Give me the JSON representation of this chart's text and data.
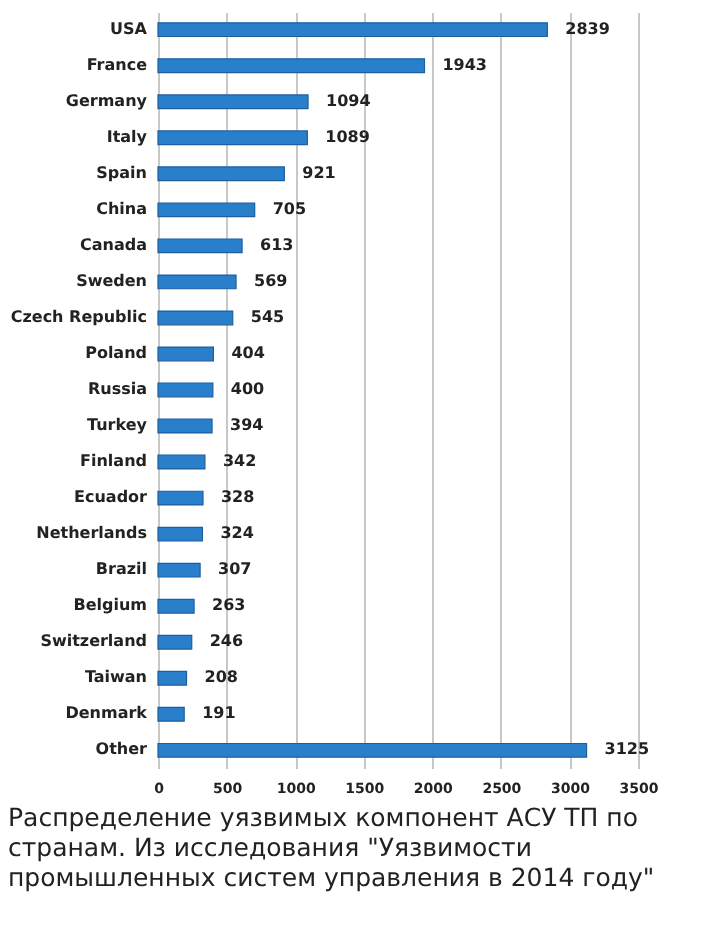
{
  "chart_data": {
    "type": "bar",
    "orientation": "horizontal",
    "categories": [
      "USA",
      "France",
      "Germany",
      "Italy",
      "Spain",
      "China",
      "Canada",
      "Sweden",
      "Czech Republic",
      "Poland",
      "Russia",
      "Turkey",
      "Finland",
      "Ecuador",
      "Netherlands",
      "Brazil",
      "Belgium",
      "Switzerland",
      "Taiwan",
      "Denmark",
      "Other"
    ],
    "values": [
      2839,
      1943,
      1094,
      1089,
      921,
      705,
      613,
      569,
      545,
      404,
      400,
      394,
      342,
      328,
      324,
      307,
      263,
      246,
      208,
      191,
      3125
    ],
    "color": "#2a7fcb",
    "xlim": [
      0,
      3500
    ],
    "xticks": [
      0,
      500,
      1000,
      1500,
      2000,
      2500,
      3000,
      3500
    ],
    "grid": "x",
    "data_labels": true,
    "annotations": [
      "Распределение уязвимых компонент АСУ ТП по странам. Из исследования \"Уязвимости промышленных систем управления в 2014 году\""
    ]
  }
}
